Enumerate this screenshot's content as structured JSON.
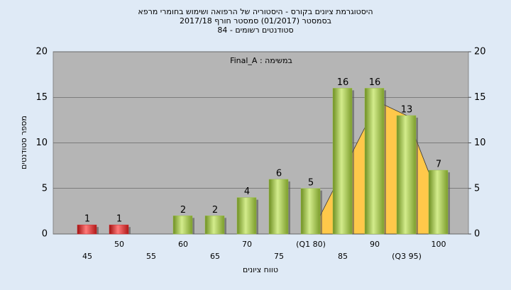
{
  "chart_data": {
    "type": "bar",
    "title": [
      "היסטוגרמת ציונים בקורס - היסטוריה של הרפואה ושימוש בחומרי מרפא",
      "בסמסטר  (01/2017)  סמסטר חורף 2017/18",
      "סטודנטים רשומים - 84"
    ],
    "annotation": "במשימה : Final_A",
    "x_label": "טווח ציונים",
    "y_label": "מספר סטודנטים",
    "categories": [
      "45",
      "50",
      "55",
      "60",
      "65",
      "70",
      "75",
      "(Q1 80)",
      "85",
      "90",
      "(Q3 95)",
      "100"
    ],
    "values": [
      1,
      1,
      null,
      2,
      2,
      4,
      6,
      5,
      16,
      16,
      13,
      7
    ],
    "colors": [
      "#d42a2a",
      "#d42a2a",
      null,
      "#9cc24a",
      "#9cc24a",
      "#9cc24a",
      "#9cc24a",
      "#9cc24a",
      "#9cc24a",
      "#9cc24a",
      "#9cc24a",
      "#9cc24a"
    ],
    "curve": {
      "color": "#ffc84a",
      "x": [
        80,
        90.5,
        95,
        100
      ],
      "values": [
        0,
        14.5,
        13,
        4
      ]
    },
    "ylim": [
      0,
      20
    ],
    "yticks": [
      0,
      5,
      10,
      15,
      20
    ],
    "y2lim": [
      0,
      20
    ],
    "y2ticks": [
      0,
      5,
      10,
      15,
      20
    ],
    "grid": true
  }
}
